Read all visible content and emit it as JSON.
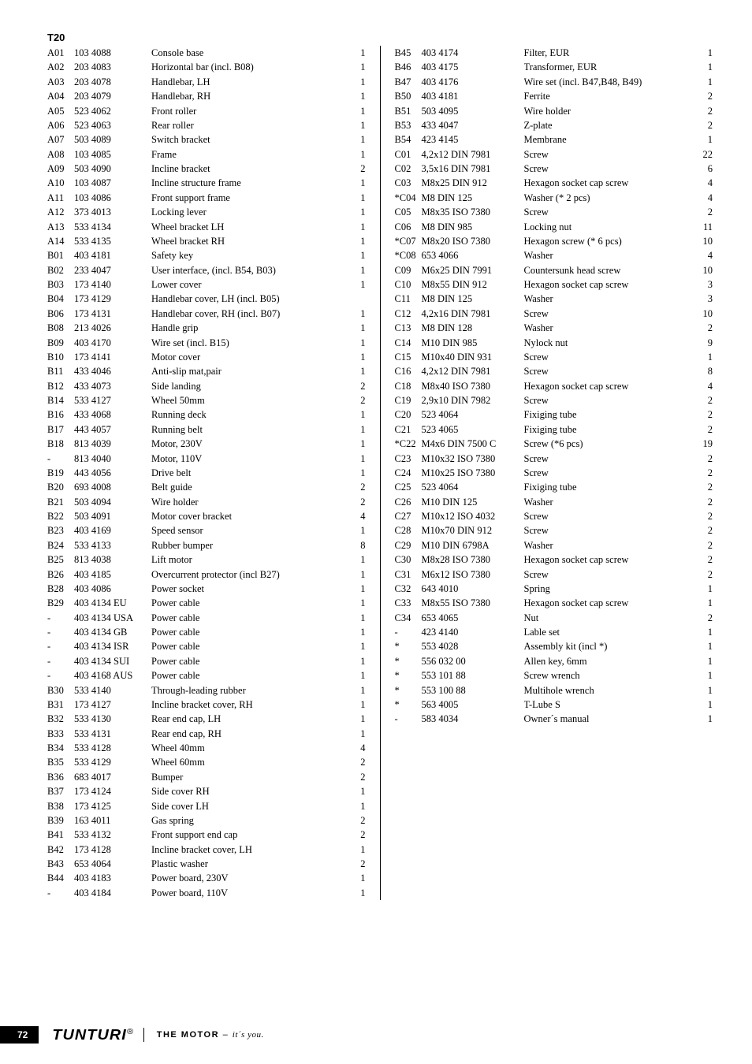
{
  "header": "T20",
  "left": [
    {
      "ref": "A01",
      "part": "103 4088",
      "desc": "Console base",
      "qty": "1"
    },
    {
      "ref": "A02",
      "part": "203 4083",
      "desc": "Horizontal bar (incl. B08)",
      "qty": "1"
    },
    {
      "ref": "A03",
      "part": "203 4078",
      "desc": "Handlebar, LH",
      "qty": "1"
    },
    {
      "ref": "A04",
      "part": "203 4079",
      "desc": "Handlebar, RH",
      "qty": "1"
    },
    {
      "ref": "A05",
      "part": "523 4062",
      "desc": "Front roller",
      "qty": "1"
    },
    {
      "ref": "A06",
      "part": "523 4063",
      "desc": "Rear roller",
      "qty": "1"
    },
    {
      "ref": "A07",
      "part": "503 4089",
      "desc": "Switch bracket",
      "qty": "1"
    },
    {
      "ref": "A08",
      "part": "103 4085",
      "desc": "Frame",
      "qty": "1"
    },
    {
      "ref": "A09",
      "part": "503 4090",
      "desc": "Incline bracket",
      "qty": "2"
    },
    {
      "ref": "A10",
      "part": "103 4087",
      "desc": "Incline structure frame",
      "qty": "1"
    },
    {
      "ref": "A11",
      "part": "103 4086",
      "desc": "Front support frame",
      "qty": "1"
    },
    {
      "ref": "A12",
      "part": "373 4013",
      "desc": "Locking lever",
      "qty": "1"
    },
    {
      "ref": "A13",
      "part": "533 4134",
      "desc": "Wheel bracket LH",
      "qty": "1"
    },
    {
      "ref": "A14",
      "part": "533 4135",
      "desc": "Wheel bracket RH",
      "qty": "1"
    },
    {
      "ref": "B01",
      "part": "403 4181",
      "desc": "Safety key",
      "qty": "1"
    },
    {
      "ref": "B02",
      "part": "233 4047",
      "desc": "User interface, (incl. B54, B03)",
      "qty": "1"
    },
    {
      "ref": "B03",
      "part": "173 4140",
      "desc": "Lower cover",
      "qty": "1"
    },
    {
      "ref": "B04",
      "part": "173 4129",
      "desc": "Handlebar cover, LH (incl. B05)",
      "qty": ""
    },
    {
      "ref": "B06",
      "part": "173 4131",
      "desc": "Handlebar cover, RH (incl. B07)",
      "qty": "1"
    },
    {
      "ref": "B08",
      "part": "213 4026",
      "desc": "Handle grip",
      "qty": "1"
    },
    {
      "ref": "B09",
      "part": "403 4170",
      "desc": "Wire set (incl. B15)",
      "qty": "1"
    },
    {
      "ref": "B10",
      "part": "173 4141",
      "desc": "Motor cover",
      "qty": "1"
    },
    {
      "ref": "B11",
      "part": "433 4046",
      "desc": "Anti-slip mat,pair",
      "qty": "1"
    },
    {
      "ref": "B12",
      "part": "433 4073",
      "desc": "Side landing",
      "qty": "2"
    },
    {
      "ref": "B14",
      "part": "533 4127",
      "desc": "Wheel 50mm",
      "qty": "2"
    },
    {
      "ref": "B16",
      "part": "433 4068",
      "desc": "Running deck",
      "qty": "1"
    },
    {
      "ref": "B17",
      "part": "443 4057",
      "desc": "Running belt",
      "qty": "1"
    },
    {
      "ref": "B18",
      "part": "813 4039",
      "desc": "Motor, 230V",
      "qty": "1"
    },
    {
      "ref": "-",
      "part": "813 4040",
      "desc": "Motor, 110V",
      "qty": "1"
    },
    {
      "ref": "B19",
      "part": "443 4056",
      "desc": "Drive belt",
      "qty": "1"
    },
    {
      "ref": "B20",
      "part": "693 4008",
      "desc": "Belt guide",
      "qty": "2"
    },
    {
      "ref": "B21",
      "part": "503 4094",
      "desc": "Wire holder",
      "qty": "2"
    },
    {
      "ref": "B22",
      "part": "503 4091",
      "desc": "Motor cover bracket",
      "qty": "4"
    },
    {
      "ref": "B23",
      "part": "403 4169",
      "desc": "Speed sensor",
      "qty": "1"
    },
    {
      "ref": "B24",
      "part": "533 4133",
      "desc": "Rubber bumper",
      "qty": "8"
    },
    {
      "ref": "B25",
      "part": "813 4038",
      "desc": "Lift motor",
      "qty": "1"
    },
    {
      "ref": "B26",
      "part": "403 4185",
      "desc": "Overcurrent protector (incl B27)",
      "qty": "1"
    },
    {
      "ref": "B28",
      "part": "403 4086",
      "desc": "Power socket",
      "qty": "1"
    },
    {
      "ref": "B29",
      "part": "403 4134 EU",
      "desc": "Power cable",
      "qty": "1"
    },
    {
      "ref": "-",
      "part": "403 4134 USA",
      "desc": "Power cable",
      "qty": "1"
    },
    {
      "ref": "-",
      "part": "403 4134 GB",
      "desc": "Power cable",
      "qty": "1"
    },
    {
      "ref": "-",
      "part": "403 4134 ISR",
      "desc": "Power cable",
      "qty": "1"
    },
    {
      "ref": "-",
      "part": "403 4134 SUI",
      "desc": "Power cable",
      "qty": "1"
    },
    {
      "ref": "-",
      "part": "403 4168 AUS",
      "desc": "Power cable",
      "qty": "1"
    },
    {
      "ref": "B30",
      "part": "533 4140",
      "desc": "Through-leading rubber",
      "qty": "1"
    },
    {
      "ref": "B31",
      "part": "173 4127",
      "desc": "Incline bracket cover, RH",
      "qty": "1"
    },
    {
      "ref": "B32",
      "part": "533 4130",
      "desc": "Rear end cap, LH",
      "qty": "1"
    },
    {
      "ref": "B33",
      "part": "533 4131",
      "desc": "Rear end cap, RH",
      "qty": "1"
    },
    {
      "ref": "B34",
      "part": "533 4128",
      "desc": "Wheel 40mm",
      "qty": "4"
    },
    {
      "ref": "B35",
      "part": "533 4129",
      "desc": "Wheel 60mm",
      "qty": "2"
    },
    {
      "ref": "B36",
      "part": "683 4017",
      "desc": "Bumper",
      "qty": "2"
    },
    {
      "ref": "B37",
      "part": "173 4124",
      "desc": "Side cover RH",
      "qty": "1"
    },
    {
      "ref": "B38",
      "part": "173 4125",
      "desc": "Side cover LH",
      "qty": "1"
    },
    {
      "ref": "B39",
      "part": "163 4011",
      "desc": "Gas spring",
      "qty": "2"
    },
    {
      "ref": "B41",
      "part": "533 4132",
      "desc": "Front support end cap",
      "qty": "2"
    },
    {
      "ref": "B42",
      "part": "173 4128",
      "desc": "Incline bracket cover, LH",
      "qty": "1"
    },
    {
      "ref": "B43",
      "part": "653 4064",
      "desc": "Plastic washer",
      "qty": "2"
    },
    {
      "ref": "B44",
      "part": "403 4183",
      "desc": "Power board, 230V",
      "qty": "1"
    },
    {
      "ref": "-",
      "part": "403 4184",
      "desc": "Power board, 110V",
      "qty": "1"
    }
  ],
  "right": [
    {
      "ref": "B45",
      "part": "403 4174",
      "desc": "Filter, EUR",
      "qty": "1"
    },
    {
      "ref": "B46",
      "part": "403 4175",
      "desc": "Transformer, EUR",
      "qty": "1"
    },
    {
      "ref": "B47",
      "part": "403 4176",
      "desc": "Wire set (incl. B47,B48, B49)",
      "qty": "1"
    },
    {
      "ref": "B50",
      "part": "403 4181",
      "desc": "Ferrite",
      "qty": "2"
    },
    {
      "ref": "B51",
      "part": "503 4095",
      "desc": "Wire holder",
      "qty": "2"
    },
    {
      "ref": "B53",
      "part": "433 4047",
      "desc": "Z-plate",
      "qty": "2"
    },
    {
      "ref": "B54",
      "part": "423 4145",
      "desc": "Membrane",
      "qty": "1"
    },
    {
      "ref": "C01",
      "part": "4,2x12 DIN 7981",
      "desc": "Screw",
      "qty": "22"
    },
    {
      "ref": "C02",
      "part": "3,5x16 DIN 7981",
      "desc": "Screw",
      "qty": "6"
    },
    {
      "ref": "C03",
      "part": "M8x25 DIN 912",
      "desc": "Hexagon socket cap screw",
      "qty": "4"
    },
    {
      "ref": "*C04",
      "part": "M8 DIN 125",
      "desc": "Washer (* 2 pcs)",
      "qty": "4"
    },
    {
      "ref": "C05",
      "part": "M8x35 ISO 7380",
      "desc": "Screw",
      "qty": "2"
    },
    {
      "ref": "C06",
      "part": "M8 DIN 985",
      "desc": "Locking nut",
      "qty": "11"
    },
    {
      "ref": "*C07",
      "part": "M8x20 ISO 7380",
      "desc": "Hexagon screw (* 6 pcs)",
      "qty": "10"
    },
    {
      "ref": "*C08",
      "part": "653 4066",
      "desc": "Washer",
      "qty": "4"
    },
    {
      "ref": "C09",
      "part": "M6x25 DIN 7991",
      "desc": "Countersunk head screw",
      "qty": "10"
    },
    {
      "ref": "C10",
      "part": "M8x55 DIN 912",
      "desc": "Hexagon socket cap screw",
      "qty": "3"
    },
    {
      "ref": "C11",
      "part": "M8 DIN 125",
      "desc": "Washer",
      "qty": "3"
    },
    {
      "ref": "C12",
      "part": "4,2x16 DIN 7981",
      "desc": "Screw",
      "qty": "10"
    },
    {
      "ref": "C13",
      "part": "M8 DIN 128",
      "desc": "Washer",
      "qty": "2"
    },
    {
      "ref": "C14",
      "part": "M10 DIN 985",
      "desc": "Nylock nut",
      "qty": "9"
    },
    {
      "ref": "C15",
      "part": "M10x40 DIN 931",
      "desc": "Screw",
      "qty": "1"
    },
    {
      "ref": "C16",
      "part": "4,2x12 DIN 7981",
      "desc": "Screw",
      "qty": "8"
    },
    {
      "ref": "C18",
      "part": "M8x40 ISO 7380",
      "desc": "Hexagon socket cap screw",
      "qty": "4"
    },
    {
      "ref": "C19",
      "part": "2,9x10 DIN 7982",
      "desc": "Screw",
      "qty": "2"
    },
    {
      "ref": "C20",
      "part": "523 4064",
      "desc": "Fixiging tube",
      "qty": "2"
    },
    {
      "ref": "C21",
      "part": "523 4065",
      "desc": "Fixiging tube",
      "qty": "2"
    },
    {
      "ref": "*C22",
      "part": "M4x6 DIN 7500 C",
      "desc": "Screw (*6 pcs)",
      "qty": "19"
    },
    {
      "ref": "C23",
      "part": "M10x32 ISO 7380",
      "desc": "Screw",
      "qty": "2"
    },
    {
      "ref": "C24",
      "part": "M10x25 ISO 7380",
      "desc": "Screw",
      "qty": "2"
    },
    {
      "ref": "C25",
      "part": "523 4064",
      "desc": "Fixiging tube",
      "qty": "2"
    },
    {
      "ref": "C26",
      "part": "M10 DIN 125",
      "desc": "Washer",
      "qty": "2"
    },
    {
      "ref": "C27",
      "part": "M10x12 ISO 4032",
      "desc": "Screw",
      "qty": "2"
    },
    {
      "ref": "C28",
      "part": "M10x70 DIN 912",
      "desc": "Screw",
      "qty": "2"
    },
    {
      "ref": "C29",
      "part": "M10 DIN 6798A",
      "desc": "Washer",
      "qty": "2"
    },
    {
      "ref": "C30",
      "part": "M8x28 ISO 7380",
      "desc": "Hexagon socket cap screw",
      "qty": "2"
    },
    {
      "ref": "C31",
      "part": "M6x12 ISO 7380",
      "desc": "Screw",
      "qty": "2"
    },
    {
      "ref": "C32",
      "part": "643 4010",
      "desc": "Spring",
      "qty": "1"
    },
    {
      "ref": "C33",
      "part": "M8x55 ISO 7380",
      "desc": "Hexagon socket cap screw",
      "qty": "1"
    },
    {
      "ref": "C34",
      "part": "653 4065",
      "desc": "Nut",
      "qty": "2"
    },
    {
      "ref": "-",
      "part": "423 4140",
      "desc": "Lable set",
      "qty": "1"
    },
    {
      "ref": "*",
      "part": "553 4028",
      "desc": "Assembly kit (incl *)",
      "qty": "1"
    },
    {
      "ref": "*",
      "part": "556 032 00",
      "desc": "Allen key, 6mm",
      "qty": "1"
    },
    {
      "ref": "*",
      "part": "553 101 88",
      "desc": "Screw wrench",
      "qty": "1"
    },
    {
      "ref": "*",
      "part": "553 100 88",
      "desc": "Multihole wrench",
      "qty": "1"
    },
    {
      "ref": "*",
      "part": "563 4005",
      "desc": "T-Lube S",
      "qty": "1"
    },
    {
      "ref": "-",
      "part": "583 4034",
      "desc": "Owner´s manual",
      "qty": "1"
    }
  ],
  "footer": {
    "page": "72",
    "brand": "TUNTURI",
    "reg": "®",
    "tagline_bold": "THE MOTOR",
    "tagline_sep": " – ",
    "tagline_italic": "it´s you."
  }
}
